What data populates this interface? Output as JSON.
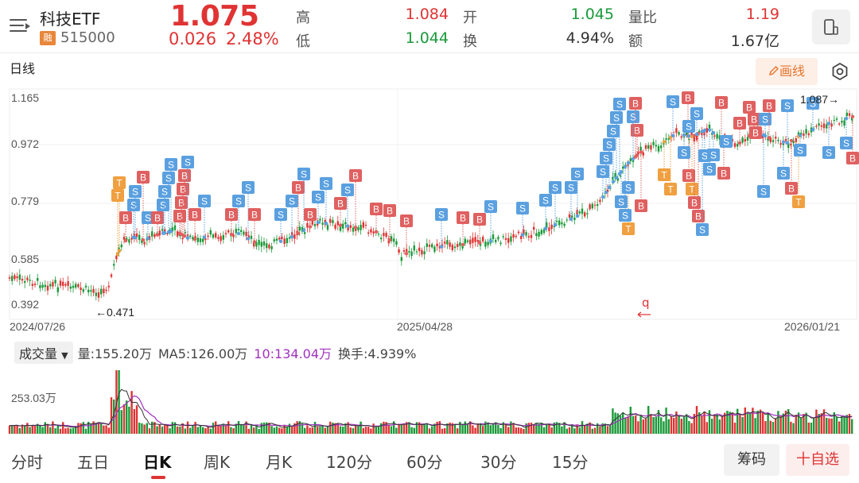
{
  "header": {
    "name": "科技ETF",
    "margin_badge": "融",
    "code": "515000",
    "price": "1.075",
    "change": "0.026",
    "change_pct": "2.48%",
    "quotes": [
      {
        "label": "高",
        "value": "1.084",
        "color": "red"
      },
      {
        "label": "低",
        "value": "1.044",
        "color": "green"
      },
      {
        "label": "开",
        "value": "1.045",
        "color": "green"
      },
      {
        "label": "换",
        "value": "4.94%",
        "color": "dark"
      },
      {
        "label": "量比",
        "value": "1.19",
        "color": "red"
      },
      {
        "label": "额",
        "value": "1.67亿",
        "color": "dark"
      }
    ]
  },
  "period": {
    "label": "日线"
  },
  "draw_button": "画线",
  "icons": {
    "menu": "menu-icon",
    "phone": "phone-icon",
    "pencil": "pencil-icon",
    "settings": "settings-icon"
  },
  "chart_data": {
    "type": "candlestick",
    "y_ticks": [
      "1.165",
      "0.972",
      "0.779",
      "0.585",
      "0.392"
    ],
    "ylim": [
      0.392,
      1.165
    ],
    "x_labels": [
      "2024/07/26",
      "2025/04/28",
      "2026/01/21"
    ],
    "annotations": {
      "min_label": "←0.471",
      "max_label": "1.087→"
    },
    "colors": {
      "up": "#e03333",
      "down": "#1a9a3a",
      "buy": "#e06060",
      "sell": "#5aa0e0",
      "t": "#f0a040"
    },
    "trade_markers": [
      {
        "k": "T",
        "x": 150,
        "y": 230
      },
      {
        "k": "T",
        "x": 148,
        "y": 246
      },
      {
        "k": "B",
        "x": 158,
        "y": 274
      },
      {
        "k": "S",
        "x": 168,
        "y": 258
      },
      {
        "k": "S",
        "x": 170,
        "y": 241
      },
      {
        "k": "B",
        "x": 180,
        "y": 223
      },
      {
        "k": "S",
        "x": 186,
        "y": 274
      },
      {
        "k": "B",
        "x": 198,
        "y": 274
      },
      {
        "k": "S",
        "x": 205,
        "y": 258
      },
      {
        "k": "S",
        "x": 207,
        "y": 241
      },
      {
        "k": "S",
        "x": 212,
        "y": 224
      },
      {
        "k": "S",
        "x": 215,
        "y": 207
      },
      {
        "k": "B",
        "x": 226,
        "y": 272
      },
      {
        "k": "B",
        "x": 228,
        "y": 255
      },
      {
        "k": "B",
        "x": 230,
        "y": 238
      },
      {
        "k": "B",
        "x": 232,
        "y": 221
      },
      {
        "k": "S",
        "x": 236,
        "y": 204
      },
      {
        "k": "B",
        "x": 245,
        "y": 270
      },
      {
        "k": "S",
        "x": 257,
        "y": 253
      },
      {
        "k": "B",
        "x": 291,
        "y": 270
      },
      {
        "k": "S",
        "x": 300,
        "y": 253
      },
      {
        "k": "S",
        "x": 312,
        "y": 236
      },
      {
        "k": "B",
        "x": 320,
        "y": 270
      },
      {
        "k": "S",
        "x": 353,
        "y": 270
      },
      {
        "k": "S",
        "x": 367,
        "y": 253
      },
      {
        "k": "B",
        "x": 375,
        "y": 236
      },
      {
        "k": "S",
        "x": 382,
        "y": 219
      },
      {
        "k": "B",
        "x": 390,
        "y": 270
      },
      {
        "k": "S",
        "x": 400,
        "y": 248
      },
      {
        "k": "S",
        "x": 410,
        "y": 231
      },
      {
        "k": "B",
        "x": 428,
        "y": 256
      },
      {
        "k": "S",
        "x": 437,
        "y": 239
      },
      {
        "k": "B",
        "x": 447,
        "y": 221
      },
      {
        "k": "B",
        "x": 473,
        "y": 263
      },
      {
        "k": "B",
        "x": 490,
        "y": 265
      },
      {
        "k": "B",
        "x": 511,
        "y": 278
      },
      {
        "k": "S",
        "x": 555,
        "y": 270
      },
      {
        "k": "B",
        "x": 582,
        "y": 274
      },
      {
        "k": "B",
        "x": 603,
        "y": 276
      },
      {
        "k": "S",
        "x": 617,
        "y": 260
      },
      {
        "k": "S",
        "x": 657,
        "y": 262
      },
      {
        "k": "S",
        "x": 686,
        "y": 252
      },
      {
        "k": "S",
        "x": 698,
        "y": 236
      },
      {
        "k": "S",
        "x": 718,
        "y": 236
      },
      {
        "k": "S",
        "x": 726,
        "y": 219
      },
      {
        "k": "S",
        "x": 758,
        "y": 216
      },
      {
        "k": "S",
        "x": 762,
        "y": 199
      },
      {
        "k": "S",
        "x": 766,
        "y": 182
      },
      {
        "k": "S",
        "x": 771,
        "y": 165
      },
      {
        "k": "S",
        "x": 775,
        "y": 148
      },
      {
        "k": "S",
        "x": 779,
        "y": 131
      },
      {
        "k": "T",
        "x": 790,
        "y": 288
      },
      {
        "k": "S",
        "x": 786,
        "y": 271
      },
      {
        "k": "S",
        "x": 781,
        "y": 254
      },
      {
        "k": "B",
        "x": 806,
        "y": 259
      },
      {
        "k": "S",
        "x": 790,
        "y": 236
      },
      {
        "k": "B",
        "x": 801,
        "y": 164
      },
      {
        "k": "S",
        "x": 796,
        "y": 147
      },
      {
        "k": "B",
        "x": 799,
        "y": 130
      },
      {
        "k": "T",
        "x": 835,
        "y": 220
      },
      {
        "k": "T",
        "x": 843,
        "y": 238
      },
      {
        "k": "S",
        "x": 846,
        "y": 128
      },
      {
        "k": "B",
        "x": 865,
        "y": 123
      },
      {
        "k": "B",
        "x": 866,
        "y": 221
      },
      {
        "k": "T",
        "x": 870,
        "y": 238
      },
      {
        "k": "B",
        "x": 873,
        "y": 255
      },
      {
        "k": "B",
        "x": 878,
        "y": 272
      },
      {
        "k": "S",
        "x": 883,
        "y": 289
      },
      {
        "k": "S",
        "x": 860,
        "y": 192
      },
      {
        "k": "S",
        "x": 866,
        "y": 159
      },
      {
        "k": "S",
        "x": 876,
        "y": 143
      },
      {
        "k": "S",
        "x": 886,
        "y": 196
      },
      {
        "k": "S",
        "x": 892,
        "y": 213
      },
      {
        "k": "S",
        "x": 897,
        "y": 195
      },
      {
        "k": "B",
        "x": 910,
        "y": 218
      },
      {
        "k": "B",
        "x": 907,
        "y": 129
      },
      {
        "k": "S",
        "x": 913,
        "y": 178
      },
      {
        "k": "B",
        "x": 930,
        "y": 155
      },
      {
        "k": "B",
        "x": 942,
        "y": 135
      },
      {
        "k": "B",
        "x": 948,
        "y": 150
      },
      {
        "k": "B",
        "x": 950,
        "y": 167
      },
      {
        "k": "S",
        "x": 962,
        "y": 150
      },
      {
        "k": "B",
        "x": 967,
        "y": 133
      },
      {
        "k": "S",
        "x": 960,
        "y": 241
      },
      {
        "k": "S",
        "x": 985,
        "y": 218
      },
      {
        "k": "B",
        "x": 995,
        "y": 237
      },
      {
        "k": "T",
        "x": 1004,
        "y": 254
      },
      {
        "k": "S",
        "x": 990,
        "y": 133
      },
      {
        "k": "S",
        "x": 1006,
        "y": 189
      },
      {
        "k": "S",
        "x": 1022,
        "y": 130
      },
      {
        "k": "S",
        "x": 1042,
        "y": 192
      },
      {
        "k": "S",
        "x": 1064,
        "y": 180
      },
      {
        "k": "B",
        "x": 1072,
        "y": 199
      }
    ]
  },
  "volume": {
    "selector": "成交量",
    "items": [
      {
        "text": "量:155.20万",
        "color": "normal"
      },
      {
        "text": "MA5:126.00万",
        "color": "normal"
      },
      {
        "text": "10:134.04万",
        "color": "purple"
      },
      {
        "text": "换手:4.939%",
        "color": "normal"
      }
    ],
    "y_label": "253.03万"
  },
  "tabs": [
    {
      "label": "分时",
      "active": false
    },
    {
      "label": "五日",
      "active": false
    },
    {
      "label": "日K",
      "active": true
    },
    {
      "label": "周K",
      "active": false
    },
    {
      "label": "月K",
      "active": false
    },
    {
      "label": "120分",
      "active": false
    },
    {
      "label": "60分",
      "active": false
    },
    {
      "label": "30分",
      "active": false
    },
    {
      "label": "15分",
      "active": false
    }
  ],
  "buttons": {
    "chips": "筹码",
    "add_watch": "十自选"
  }
}
